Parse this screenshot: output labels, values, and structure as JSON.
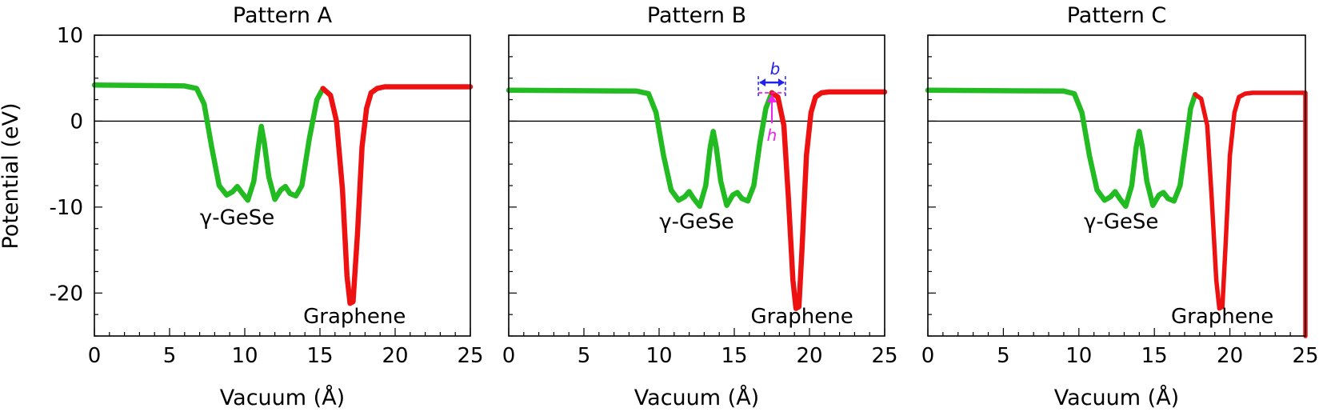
{
  "chart_data": [
    {
      "type": "line",
      "title": "Pattern A",
      "xlabel": "Vacuum (Å)",
      "ylabel": "Potential (eV)",
      "xlim": [
        0,
        25
      ],
      "ylim": [
        -25,
        10
      ],
      "xticks": [
        0,
        5,
        10,
        15,
        20,
        25
      ],
      "yticks": [
        10,
        0,
        -10,
        -20
      ],
      "ytick_labels": [
        "10",
        "0",
        "-10",
        "-20"
      ],
      "reference_line_y": 0,
      "annotations": [
        {
          "text": "γ-GeSe",
          "x": 9.5,
          "y": -12
        },
        {
          "text": "Graphene",
          "x": 17.3,
          "y": -23.5
        }
      ],
      "series": [
        {
          "name": "γ-GeSe",
          "color": "#22bb22",
          "x": [
            0,
            6,
            6.8,
            7.3,
            7.8,
            8.3,
            8.8,
            9.2,
            9.5,
            9.8,
            10.2,
            10.6,
            10.9,
            11.1,
            11.3,
            11.6,
            12.0,
            12.4,
            12.7,
            13.0,
            13.4,
            13.8,
            14.3,
            14.8,
            15.2
          ],
          "y": [
            4.2,
            4.1,
            3.8,
            2.0,
            -3.0,
            -7.5,
            -8.6,
            -8.2,
            -7.6,
            -8.3,
            -9.2,
            -7.0,
            -3.0,
            -0.6,
            -2.5,
            -6.5,
            -9.1,
            -8.0,
            -7.6,
            -8.4,
            -8.7,
            -7.5,
            -2.0,
            2.5,
            3.8
          ]
        },
        {
          "name": "Graphene",
          "color": "#ee1111",
          "x": [
            15.2,
            15.7,
            16.1,
            16.5,
            16.8,
            17.0,
            17.2,
            17.5,
            17.8,
            18.1,
            18.4,
            18.8,
            19.3,
            20,
            25
          ],
          "y": [
            3.8,
            3.0,
            0.0,
            -8.0,
            -18.0,
            -21.2,
            -21.0,
            -13.0,
            -3.0,
            1.5,
            3.3,
            3.8,
            4.0,
            4.0,
            4.0
          ]
        }
      ]
    },
    {
      "type": "line",
      "title": "Pattern B",
      "xlabel": "Vacuum (Å)",
      "ylabel": "",
      "xlim": [
        0,
        25
      ],
      "ylim": [
        -25,
        10
      ],
      "xticks": [
        0,
        5,
        10,
        15,
        20,
        25
      ],
      "yticks": [
        10,
        0,
        -10,
        -20
      ],
      "ytick_labels": [
        "",
        "",
        "",
        ""
      ],
      "reference_line_y": 0,
      "annotations": [
        {
          "text": "γ-GeSe",
          "x": 12.5,
          "y": -12.5
        },
        {
          "text": "Graphene",
          "x": 19.5,
          "y": -23.5
        }
      ],
      "barrier_markers": {
        "b_label": "b",
        "h_label": "h",
        "b_color": "#2222ee",
        "h_color": "#ee22ee",
        "x_left": 16.6,
        "x_right": 18.4,
        "y_top": 4.5,
        "y_bottom": 3.3,
        "h_x": 17.5
      },
      "series": [
        {
          "name": "γ-GeSe",
          "color": "#22bb22",
          "x": [
            0,
            8.5,
            9.3,
            9.8,
            10.3,
            10.8,
            11.3,
            11.7,
            12.0,
            12.3,
            12.7,
            13.1,
            13.4,
            13.6,
            13.8,
            14.1,
            14.5,
            14.9,
            15.2,
            15.5,
            15.9,
            16.3,
            16.7,
            17.1,
            17.5
          ],
          "y": [
            3.6,
            3.5,
            3.2,
            1.0,
            -4.0,
            -8.0,
            -9.2,
            -8.8,
            -8.2,
            -9.0,
            -9.9,
            -7.5,
            -3.0,
            -1.2,
            -3.0,
            -7.0,
            -9.8,
            -8.6,
            -8.3,
            -9.0,
            -9.3,
            -7.5,
            -2.5,
            1.5,
            3.3
          ]
        },
        {
          "name": "Graphene",
          "color": "#ee1111",
          "x": [
            17.5,
            17.9,
            18.3,
            18.6,
            18.9,
            19.1,
            19.3,
            19.5,
            19.8,
            20.1,
            20.4,
            20.8,
            21.3,
            22,
            25
          ],
          "y": [
            3.3,
            2.8,
            -0.5,
            -9.0,
            -18.5,
            -21.8,
            -21.6,
            -15.0,
            -4.0,
            1.0,
            2.8,
            3.3,
            3.4,
            3.4,
            3.4
          ]
        }
      ]
    },
    {
      "type": "line",
      "title": "Pattern C",
      "xlabel": "Vacuum (Å)",
      "ylabel": "",
      "xlim": [
        0,
        25
      ],
      "ylim": [
        -25,
        10
      ],
      "xticks": [
        0,
        5,
        10,
        15,
        20,
        25
      ],
      "yticks": [
        10,
        0,
        -10,
        -20
      ],
      "ytick_labels": [
        "",
        "",
        "",
        ""
      ],
      "reference_line_y": 0,
      "annotations": [
        {
          "text": "γ-GeSe",
          "x": 12.8,
          "y": -12.5
        },
        {
          "text": "Graphene",
          "x": 19.5,
          "y": -23.5
        }
      ],
      "series": [
        {
          "name": "γ-GeSe",
          "color": "#22bb22",
          "x": [
            0,
            9.0,
            9.7,
            10.2,
            10.7,
            11.2,
            11.7,
            12.1,
            12.4,
            12.7,
            13.1,
            13.5,
            13.8,
            14.0,
            14.2,
            14.5,
            14.9,
            15.3,
            15.6,
            15.9,
            16.3,
            16.7,
            17.1,
            17.4,
            17.7
          ],
          "y": [
            3.6,
            3.5,
            3.2,
            1.0,
            -4.0,
            -8.0,
            -9.2,
            -8.8,
            -8.2,
            -9.0,
            -9.9,
            -7.5,
            -3.0,
            -1.2,
            -3.0,
            -7.0,
            -9.8,
            -8.6,
            -8.3,
            -9.0,
            -9.3,
            -7.5,
            -2.5,
            1.5,
            3.1
          ]
        },
        {
          "name": "Graphene",
          "color": "#ee1111",
          "x": [
            17.7,
            18.1,
            18.5,
            18.8,
            19.1,
            19.3,
            19.5,
            19.7,
            20.0,
            20.3,
            20.6,
            21.0,
            21.5,
            22.2,
            24.9,
            25.0,
            25.0
          ],
          "y": [
            3.1,
            2.6,
            -0.5,
            -9.0,
            -18.5,
            -21.8,
            -21.6,
            -15.0,
            -4.0,
            1.0,
            2.8,
            3.2,
            3.3,
            3.3,
            3.3,
            3.3,
            -25.0
          ]
        }
      ]
    }
  ]
}
